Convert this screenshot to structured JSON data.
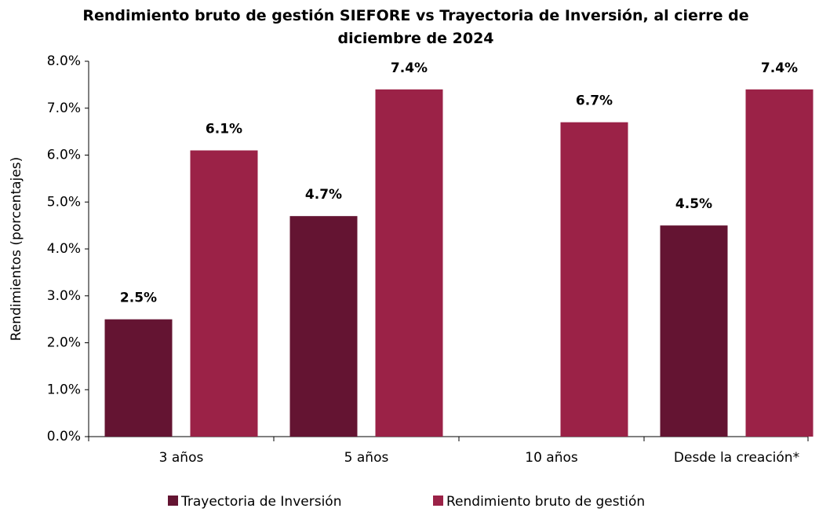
{
  "chart_data": {
    "type": "bar",
    "title": "Rendimiento bruto de gestión SIEFORE vs Trayectoria de Inversión, al cierre de diciembre de 2024",
    "y_label": "Rendimientos (porcentajes)",
    "categories": [
      "3 años",
      "5 años",
      "10 años",
      "Desde la creación*"
    ],
    "series": [
      {
        "name": "Trayectoria de Inversión",
        "color": "#641432",
        "values": [
          2.5,
          4.7,
          null,
          4.5
        ],
        "value_labels": [
          "2.5%",
          "4.7%",
          null,
          "4.5%"
        ]
      },
      {
        "name": "Rendimiento bruto de gestión",
        "color": "#9b2247",
        "values": [
          6.1,
          7.4,
          6.7,
          7.4
        ],
        "value_labels": [
          "6.1%",
          "7.4%",
          "6.7%",
          "7.4%"
        ]
      }
    ],
    "ylim": [
      0,
      8
    ],
    "yticks": [
      {
        "value": 0,
        "label": "0.0%"
      },
      {
        "value": 1,
        "label": "1.0%"
      },
      {
        "value": 2,
        "label": "2.0%"
      },
      {
        "value": 3,
        "label": "3.0%"
      },
      {
        "value": 4,
        "label": "4.0%"
      },
      {
        "value": 5,
        "label": "5.0%"
      },
      {
        "value": 6,
        "label": "6.0%"
      },
      {
        "value": 7,
        "label": "7.0%"
      },
      {
        "value": 8,
        "label": "8.0%"
      }
    ],
    "legend": "bottom"
  }
}
